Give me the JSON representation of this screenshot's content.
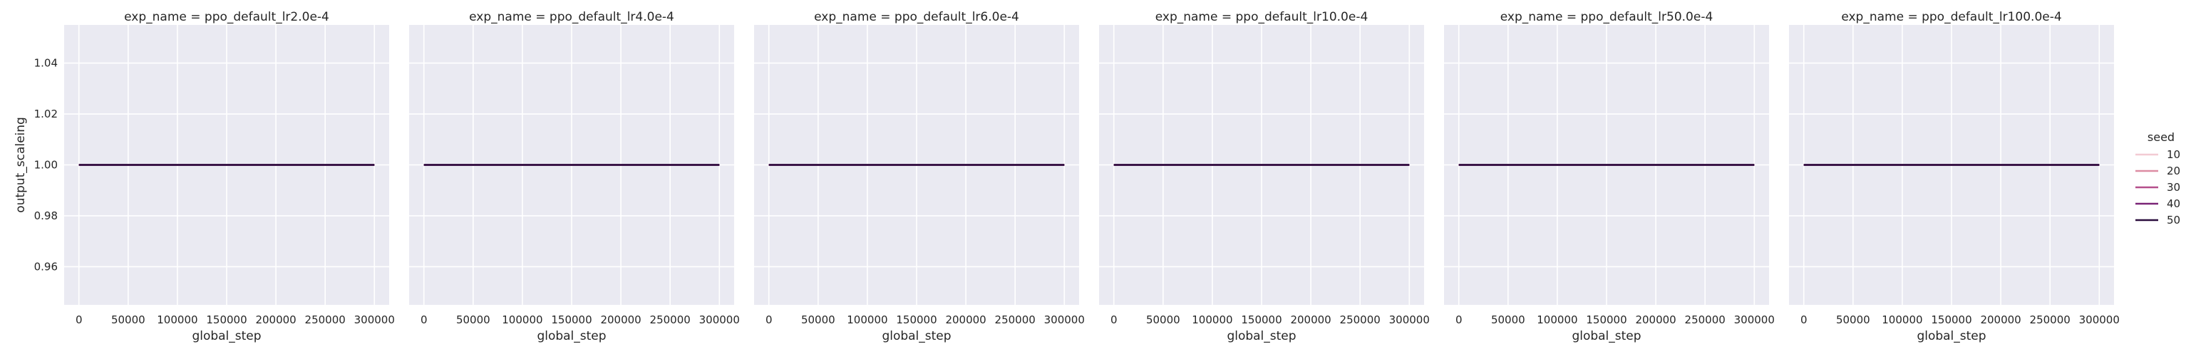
{
  "chart_data": {
    "type": "line",
    "ylabel": "output_scaleing",
    "xlabel": "global_step",
    "xlim": [
      -15000,
      315000
    ],
    "ylim": [
      0.945,
      1.055
    ],
    "x_ticks": [
      0,
      50000,
      100000,
      150000,
      200000,
      250000,
      300000
    ],
    "y_ticks": [
      0.96,
      0.98,
      1.0,
      1.02,
      1.04
    ],
    "x_tick_labels": [
      "0",
      "50000",
      "100000",
      "150000",
      "200000",
      "250000",
      "300000"
    ],
    "y_tick_labels": [
      "0.96",
      "0.98",
      "1.00",
      "1.02",
      "1.04"
    ],
    "grid": true,
    "legend": {
      "title": "seed",
      "placement": "right",
      "entries": [
        "10",
        "20",
        "30",
        "40",
        "50"
      ],
      "colors": [
        "#f3cbd3",
        "#dd8ca3",
        "#b54f8b",
        "#7a2577",
        "#2a0d3d"
      ]
    },
    "facets": [
      {
        "title": "exp_name = ppo_default_lr2.0e-4",
        "series": [
          {
            "name": "10",
            "x": [
              0,
              300000
            ],
            "y": [
              1.0,
              1.0
            ]
          },
          {
            "name": "20",
            "x": [
              0,
              300000
            ],
            "y": [
              1.0,
              1.0
            ]
          },
          {
            "name": "30",
            "x": [
              0,
              300000
            ],
            "y": [
              1.0,
              1.0
            ]
          },
          {
            "name": "40",
            "x": [
              0,
              300000
            ],
            "y": [
              1.0,
              1.0
            ]
          },
          {
            "name": "50",
            "x": [
              0,
              300000
            ],
            "y": [
              1.0,
              1.0
            ]
          }
        ]
      },
      {
        "title": "exp_name = ppo_default_lr4.0e-4",
        "series": [
          {
            "name": "10",
            "x": [
              0,
              300000
            ],
            "y": [
              1.0,
              1.0
            ]
          },
          {
            "name": "20",
            "x": [
              0,
              300000
            ],
            "y": [
              1.0,
              1.0
            ]
          },
          {
            "name": "30",
            "x": [
              0,
              300000
            ],
            "y": [
              1.0,
              1.0
            ]
          },
          {
            "name": "40",
            "x": [
              0,
              300000
            ],
            "y": [
              1.0,
              1.0
            ]
          },
          {
            "name": "50",
            "x": [
              0,
              300000
            ],
            "y": [
              1.0,
              1.0
            ]
          }
        ]
      },
      {
        "title": "exp_name = ppo_default_lr6.0e-4",
        "series": [
          {
            "name": "10",
            "x": [
              0,
              300000
            ],
            "y": [
              1.0,
              1.0
            ]
          },
          {
            "name": "20",
            "x": [
              0,
              300000
            ],
            "y": [
              1.0,
              1.0
            ]
          },
          {
            "name": "30",
            "x": [
              0,
              300000
            ],
            "y": [
              1.0,
              1.0
            ]
          },
          {
            "name": "40",
            "x": [
              0,
              300000
            ],
            "y": [
              1.0,
              1.0
            ]
          },
          {
            "name": "50",
            "x": [
              0,
              300000
            ],
            "y": [
              1.0,
              1.0
            ]
          }
        ]
      },
      {
        "title": "exp_name = ppo_default_lr10.0e-4",
        "series": [
          {
            "name": "10",
            "x": [
              0,
              300000
            ],
            "y": [
              1.0,
              1.0
            ]
          },
          {
            "name": "20",
            "x": [
              0,
              300000
            ],
            "y": [
              1.0,
              1.0
            ]
          },
          {
            "name": "30",
            "x": [
              0,
              300000
            ],
            "y": [
              1.0,
              1.0
            ]
          },
          {
            "name": "40",
            "x": [
              0,
              300000
            ],
            "y": [
              1.0,
              1.0
            ]
          },
          {
            "name": "50",
            "x": [
              0,
              300000
            ],
            "y": [
              1.0,
              1.0
            ]
          }
        ]
      },
      {
        "title": "exp_name = ppo_default_lr50.0e-4",
        "series": [
          {
            "name": "10",
            "x": [
              0,
              300000
            ],
            "y": [
              1.0,
              1.0
            ]
          },
          {
            "name": "20",
            "x": [
              0,
              300000
            ],
            "y": [
              1.0,
              1.0
            ]
          },
          {
            "name": "30",
            "x": [
              0,
              300000
            ],
            "y": [
              1.0,
              1.0
            ]
          },
          {
            "name": "40",
            "x": [
              0,
              300000
            ],
            "y": [
              1.0,
              1.0
            ]
          },
          {
            "name": "50",
            "x": [
              0,
              300000
            ],
            "y": [
              1.0,
              1.0
            ]
          }
        ]
      },
      {
        "title": "exp_name = ppo_default_lr100.0e-4",
        "series": [
          {
            "name": "10",
            "x": [
              0,
              300000
            ],
            "y": [
              1.0,
              1.0
            ]
          },
          {
            "name": "20",
            "x": [
              0,
              300000
            ],
            "y": [
              1.0,
              1.0
            ]
          },
          {
            "name": "30",
            "x": [
              0,
              300000
            ],
            "y": [
              1.0,
              1.0
            ]
          },
          {
            "name": "40",
            "x": [
              0,
              300000
            ],
            "y": [
              1.0,
              1.0
            ]
          },
          {
            "name": "50",
            "x": [
              0,
              300000
            ],
            "y": [
              1.0,
              1.0
            ]
          }
        ]
      }
    ]
  }
}
